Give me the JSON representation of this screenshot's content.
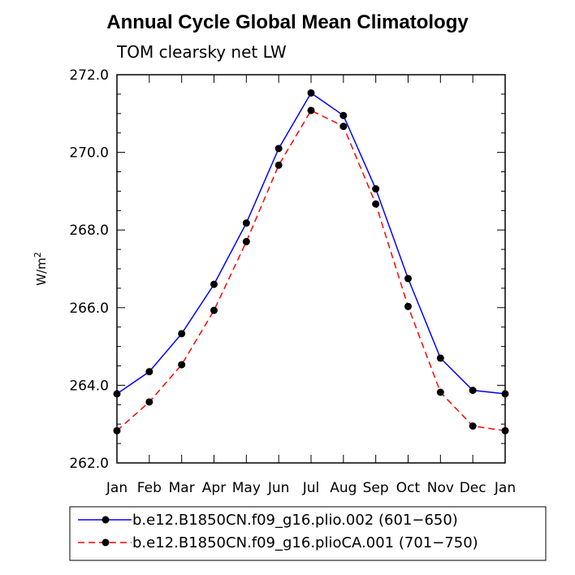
{
  "chart_data": {
    "type": "line",
    "title": "Annual Cycle Global Mean Climatology",
    "subtitle": "TOM clearsky net LW",
    "ylabel": "W/m",
    "ylabel_sup": "2",
    "xlabel": "",
    "categories": [
      "Jan",
      "Feb",
      "Mar",
      "Apr",
      "May",
      "Jun",
      "Jul",
      "Aug",
      "Sep",
      "Oct",
      "Nov",
      "Dec",
      "Jan"
    ],
    "ylim": [
      262.0,
      272.0
    ],
    "yticks": [
      262.0,
      264.0,
      266.0,
      268.0,
      270.0,
      272.0
    ],
    "yticks_labels": [
      "262.0",
      "264.0",
      "266.0",
      "268.0",
      "270.0",
      "272.0"
    ],
    "grid": false,
    "legend_position": "bottom",
    "series": [
      {
        "name": "b.e12.B1850CN.f09_g16.plio.002 (601−650)",
        "color": "#0000ff",
        "dash": "solid",
        "marker": "filled-circle",
        "values": [
          263.78,
          264.35,
          265.33,
          266.6,
          268.18,
          270.1,
          271.53,
          270.95,
          269.06,
          266.75,
          264.7,
          263.87,
          263.78
        ]
      },
      {
        "name": "b.e12.B1850CN.f09_g16.plioCA.001 (701−750)",
        "color": "#ff0000",
        "dash": "dashed",
        "marker": "filled-circle",
        "values": [
          262.83,
          263.57,
          264.53,
          265.93,
          267.7,
          269.67,
          271.08,
          270.67,
          268.67,
          266.03,
          263.82,
          262.95,
          262.83
        ]
      }
    ]
  }
}
